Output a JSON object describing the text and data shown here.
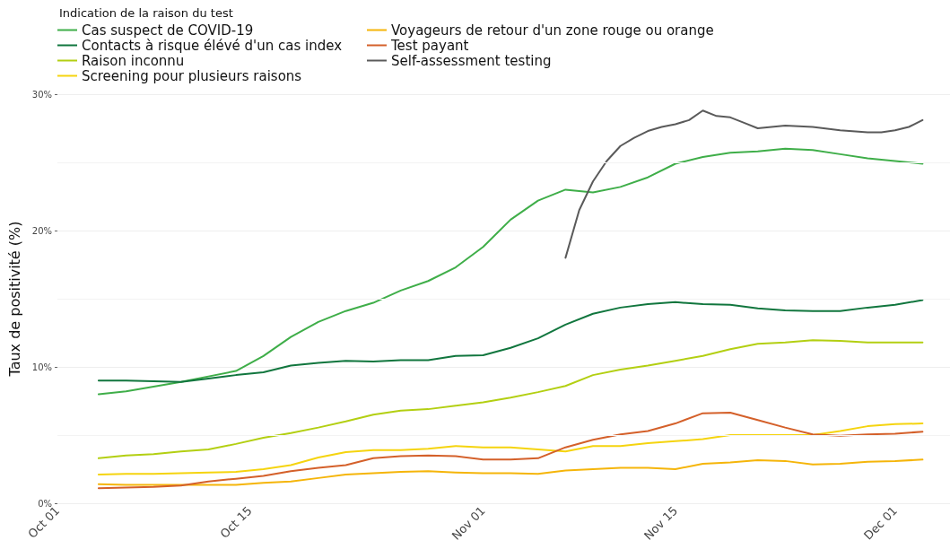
{
  "chart_data": {
    "type": "line",
    "legend_title": "Indication de la raison du test",
    "ylabel": "Taux de positivité (%)",
    "x": [
      "--10-04",
      "--10-06",
      "--10-08",
      "--10-10",
      "--10-12",
      "--10-14",
      "--10-16",
      "--10-18",
      "--10-20",
      "--10-22",
      "--10-24",
      "--10-26",
      "--10-28",
      "--10-30",
      "--11-01",
      "--11-03",
      "--11-05",
      "--11-07",
      "--11-09",
      "--11-11",
      "--11-13",
      "--11-15",
      "--11-17",
      "--11-19",
      "--11-21",
      "--11-23",
      "--11-25",
      "--11-27",
      "--11-29",
      "--12-01",
      "--12-03"
    ],
    "series": [
      {
        "name": "Cas suspect de COVID-19",
        "color": "#3fae49",
        "values": [
          8.0,
          8.2,
          8.55,
          8.9,
          9.3,
          9.7,
          10.8,
          12.2,
          13.3,
          14.1,
          14.7,
          15.6,
          16.3,
          17.3,
          18.8,
          20.8,
          22.2,
          23.0,
          22.8,
          23.2,
          23.9,
          24.9,
          25.4,
          25.7,
          25.8,
          26.0,
          25.9,
          25.6,
          25.3,
          25.1,
          24.9
        ]
      },
      {
        "name": "Contacts à risque élévé d'un cas index",
        "color": "#11763e",
        "values": [
          9.0,
          9.0,
          8.95,
          8.9,
          9.15,
          9.4,
          9.6,
          10.1,
          10.3,
          10.45,
          10.4,
          10.5,
          10.5,
          10.8,
          10.85,
          11.4,
          12.1,
          13.1,
          13.9,
          14.35,
          14.6,
          14.75,
          14.6,
          14.55,
          14.3,
          14.15,
          14.1,
          14.1,
          14.35,
          14.55,
          14.9
        ]
      },
      {
        "name": "Raison inconnu",
        "color": "#b3cf12",
        "values": [
          3.3,
          3.5,
          3.6,
          3.8,
          3.95,
          4.35,
          4.8,
          5.15,
          5.55,
          6.0,
          6.5,
          6.8,
          6.9,
          7.15,
          7.4,
          7.75,
          8.15,
          8.6,
          9.4,
          9.8,
          10.1,
          10.45,
          10.8,
          11.3,
          11.7,
          11.8,
          11.95,
          11.9,
          11.8,
          11.8,
          11.8
        ]
      },
      {
        "name": "Screening pour plusieurs raisons",
        "color": "#f5d40f",
        "values": [
          2.1,
          2.15,
          2.15,
          2.2,
          2.25,
          2.3,
          2.5,
          2.8,
          3.35,
          3.75,
          3.9,
          3.9,
          4.0,
          4.2,
          4.1,
          4.1,
          3.95,
          3.8,
          4.2,
          4.2,
          4.4,
          4.55,
          4.7,
          5.0,
          5.0,
          5.0,
          5.0,
          5.3,
          5.65,
          5.8,
          5.85
        ]
      },
      {
        "name": "Voyageurs de retour d'un zone rouge ou orange",
        "color": "#f5b50a",
        "values": [
          1.4,
          1.35,
          1.35,
          1.35,
          1.35,
          1.35,
          1.5,
          1.6,
          1.85,
          2.1,
          2.2,
          2.3,
          2.35,
          2.25,
          2.2,
          2.2,
          2.15,
          2.4,
          2.5,
          2.6,
          2.6,
          2.5,
          2.9,
          3.0,
          3.15,
          3.1,
          2.85,
          2.9,
          3.05,
          3.1,
          3.2
        ]
      },
      {
        "name": "Test payant",
        "color": "#d4602a",
        "values": [
          1.1,
          1.15,
          1.2,
          1.3,
          1.6,
          1.8,
          2.0,
          2.35,
          2.6,
          2.8,
          3.3,
          3.45,
          3.5,
          3.45,
          3.2,
          3.2,
          3.3,
          4.1,
          4.65,
          5.05,
          5.3,
          5.85,
          6.6,
          6.65,
          6.1,
          5.55,
          5.05,
          4.95,
          5.05,
          5.1,
          5.25
        ]
      },
      {
        "name": "Self-assessment testing",
        "color": "#5a5a5a",
        "x": [
          "--11-07",
          "--11-08",
          "--11-09",
          "--11-10",
          "--11-11",
          "--11-12",
          "--11-13",
          "--11-14",
          "--11-15",
          "--11-16",
          "--11-17",
          "--11-18",
          "--11-19",
          "--11-20",
          "--11-21",
          "--11-23",
          "--11-25",
          "--11-27",
          "--11-29",
          "--11-30",
          "--12-01",
          "--12-02",
          "--12-03"
        ],
        "values": [
          18.0,
          21.5,
          23.6,
          25.1,
          26.2,
          26.8,
          27.3,
          27.6,
          27.8,
          28.1,
          28.8,
          28.4,
          28.3,
          27.9,
          27.5,
          27.7,
          27.6,
          27.35,
          27.2,
          27.2,
          27.35,
          27.6,
          28.1
        ]
      }
    ],
    "xlim": [
      "--10-01",
      "--12-05"
    ],
    "xticks": [
      {
        "value": "--10-01",
        "label": "Oct 01"
      },
      {
        "value": "--10-15",
        "label": "Oct 15"
      },
      {
        "value": "--11-01",
        "label": "Nov 01"
      },
      {
        "value": "--11-15",
        "label": "Nov 15"
      },
      {
        "value": "--12-01",
        "label": "Dec 01"
      }
    ],
    "ylim": [
      0,
      30
    ],
    "yticks": [
      {
        "value": 0,
        "label": "0%"
      },
      {
        "value": 5,
        "label": null
      },
      {
        "value": 10,
        "label": "10%"
      },
      {
        "value": 15,
        "label": null
      },
      {
        "value": 20,
        "label": "20%"
      },
      {
        "value": 25,
        "label": null
      },
      {
        "value": 30,
        "label": "30%"
      }
    ],
    "grid": "y",
    "legend": "top left",
    "line_style": "solid",
    "marker": "none"
  }
}
